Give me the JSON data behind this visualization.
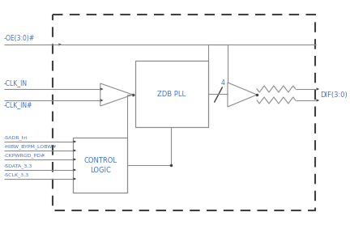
{
  "bg_color": "#ffffff",
  "line_color": "#8c8c8c",
  "text_color": "#4472c4",
  "dark_line": "#404040",
  "oe_label": "-OE(3:0)#",
  "clk_in_label": "-CLK_IN",
  "clk_inn_label": "-CLK_IN#",
  "sadr_label": "-SADR_tri",
  "hibw_label": "-HIBW_BYPM_LOBW#",
  "ckpwr_label": "-CKPWRGD_PD#",
  "sdata_label": "-SDATA_3.3",
  "sclk_label": "-SCLK_3.3",
  "dif_label": "DIF(3:0)",
  "zdb_label": "ZDB PLL",
  "ctrl_label1": "CONTROL",
  "ctrl_label2": "LOGIC",
  "bus_label": "4"
}
